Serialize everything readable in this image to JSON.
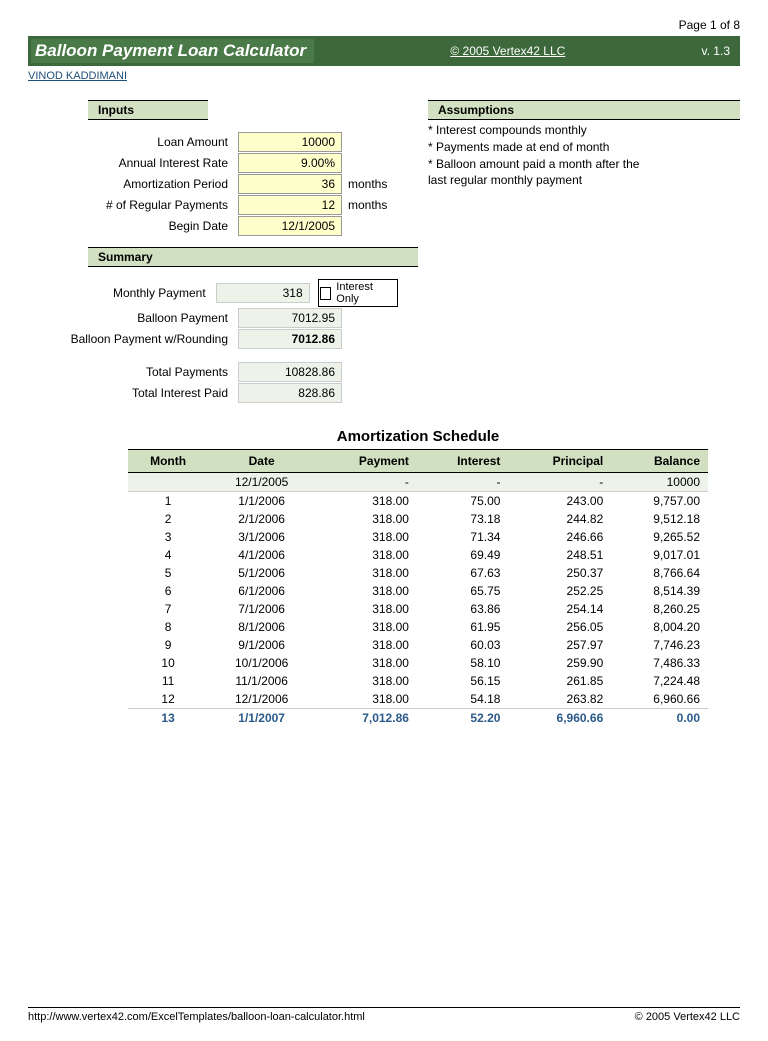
{
  "page_num": "Page 1 of 8",
  "title": "Balloon Payment Loan Calculator",
  "copyright_top": "© 2005 Vertex42 LLC",
  "version": "v. 1.3",
  "author": "VINOD KADDIMANI",
  "inputs_head": "Inputs",
  "assumptions_head": "Assumptions",
  "assumptions": [
    "* Interest compounds monthly",
    "* Payments made at end of month",
    "* Balloon amount paid a month after the",
    "last regular monthly payment"
  ],
  "inputs": {
    "loan_amount": {
      "label": "Loan Amount",
      "value": "10000",
      "unit": ""
    },
    "rate": {
      "label": "Annual Interest Rate",
      "value": "9.00%",
      "unit": ""
    },
    "amort": {
      "label": "Amortization Period",
      "value": "36",
      "unit": "months"
    },
    "num_pay": {
      "label": "# of Regular Payments",
      "value": "12",
      "unit": "months"
    },
    "begin": {
      "label": "Begin Date",
      "value": "12/1/2005",
      "unit": ""
    }
  },
  "summary_head": "Summary",
  "summary": {
    "monthly": {
      "label": "Monthly Payment",
      "value": "318"
    },
    "balloon": {
      "label": "Balloon Payment",
      "value": "7012.95"
    },
    "balloon_round": {
      "label": "Balloon Payment w/Rounding",
      "value": "7012.86"
    },
    "total_pay": {
      "label": "Total Payments",
      "value": "10828.86"
    },
    "total_int": {
      "label": "Total Interest Paid",
      "value": "828.86"
    }
  },
  "interest_only_label": "Interest Only",
  "schedule_title": "Amortization Schedule",
  "columns": [
    "Month",
    "Date",
    "Payment",
    "Interest",
    "Principal",
    "Balance"
  ],
  "rows": [
    {
      "m": "",
      "d": "12/1/2005",
      "p": "-",
      "i": "-",
      "pr": "-",
      "b": "10000",
      "init": true
    },
    {
      "m": "1",
      "d": "1/1/2006",
      "p": "318.00",
      "i": "75.00",
      "pr": "243.00",
      "b": "9,757.00"
    },
    {
      "m": "2",
      "d": "2/1/2006",
      "p": "318.00",
      "i": "73.18",
      "pr": "244.82",
      "b": "9,512.18"
    },
    {
      "m": "3",
      "d": "3/1/2006",
      "p": "318.00",
      "i": "71.34",
      "pr": "246.66",
      "b": "9,265.52"
    },
    {
      "m": "4",
      "d": "4/1/2006",
      "p": "318.00",
      "i": "69.49",
      "pr": "248.51",
      "b": "9,017.01"
    },
    {
      "m": "5",
      "d": "5/1/2006",
      "p": "318.00",
      "i": "67.63",
      "pr": "250.37",
      "b": "8,766.64"
    },
    {
      "m": "6",
      "d": "6/1/2006",
      "p": "318.00",
      "i": "65.75",
      "pr": "252.25",
      "b": "8,514.39"
    },
    {
      "m": "7",
      "d": "7/1/2006",
      "p": "318.00",
      "i": "63.86",
      "pr": "254.14",
      "b": "8,260.25"
    },
    {
      "m": "8",
      "d": "8/1/2006",
      "p": "318.00",
      "i": "61.95",
      "pr": "256.05",
      "b": "8,004.20"
    },
    {
      "m": "9",
      "d": "9/1/2006",
      "p": "318.00",
      "i": "60.03",
      "pr": "257.97",
      "b": "7,746.23"
    },
    {
      "m": "10",
      "d": "10/1/2006",
      "p": "318.00",
      "i": "58.10",
      "pr": "259.90",
      "b": "7,486.33"
    },
    {
      "m": "11",
      "d": "11/1/2006",
      "p": "318.00",
      "i": "56.15",
      "pr": "261.85",
      "b": "7,224.48"
    },
    {
      "m": "12",
      "d": "12/1/2006",
      "p": "318.00",
      "i": "54.18",
      "pr": "263.82",
      "b": "6,960.66"
    },
    {
      "m": "13",
      "d": "1/1/2007",
      "p": "7,012.86",
      "i": "52.20",
      "pr": "6,960.66",
      "b": "0.00",
      "final": true
    }
  ],
  "footer_url": "http://www.vertex42.com/ExcelTemplates/balloon-loan-calculator.html",
  "footer_copy": "© 2005 Vertex42 LLC"
}
